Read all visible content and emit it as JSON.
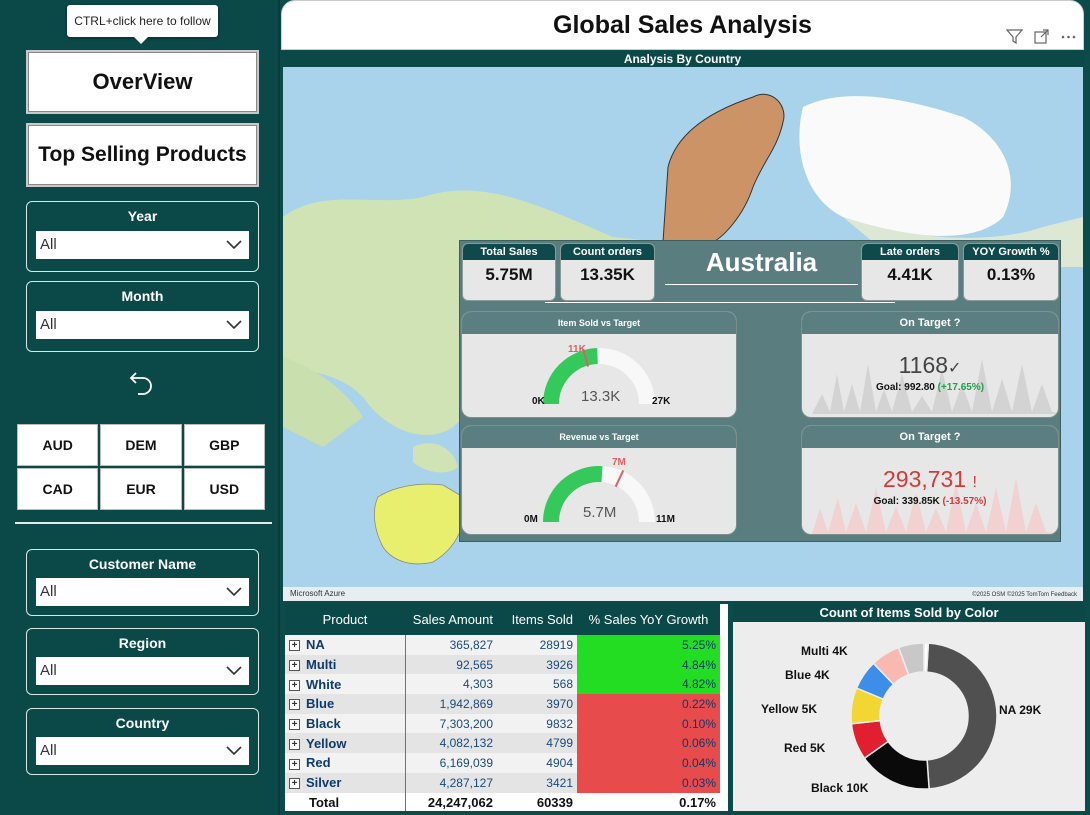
{
  "sidebar": {
    "tooltip": "CTRL+click here to follow",
    "overview_label": "OverView",
    "top_products_label": "Top Selling Products",
    "slicers": [
      {
        "label": "Year",
        "value": "All"
      },
      {
        "label": "Month",
        "value": "All"
      },
      {
        "label": "Customer Name",
        "value": "All"
      },
      {
        "label": "Region",
        "value": "All"
      },
      {
        "label": "Country",
        "value": "All"
      }
    ],
    "currencies": [
      "AUD",
      "DEM",
      "GBP",
      "CAD",
      "EUR",
      "USD"
    ]
  },
  "header": {
    "title": "Global Sales Analysis",
    "map_title": "Analysis By Country",
    "map_credit": "Microsoft Azure",
    "map_credit2": "©2025 OSM ©2025 TomTom Feedback"
  },
  "card": {
    "country": "Australia",
    "kpis": [
      {
        "label": "Total Sales",
        "value": "5.75M"
      },
      {
        "label": "Count orders",
        "value": "13.35K"
      },
      {
        "label": "Late orders",
        "value": "4.41K"
      },
      {
        "label": "YOY Growth %",
        "value": "0.13%"
      }
    ],
    "gauge_items": {
      "title": "Item Sold vs Target",
      "value": "13.3K",
      "min": "0K",
      "max": "27K",
      "target": "11K",
      "fill": 0.49,
      "target_frac": 0.41
    },
    "gauge_revenue": {
      "title": "Revenue vs Target",
      "value": "5.7M",
      "min": "0M",
      "max": "11M",
      "target": "7M",
      "fill": 0.52,
      "target_frac": 0.64
    },
    "on_target_1": {
      "title": "On Target ?",
      "value": "1168",
      "mark": "✓",
      "goal": "Goal: 992.80",
      "delta": "(+17.65%)"
    },
    "on_target_2": {
      "title": "On Target ?",
      "value": "293,731",
      "mark": "!",
      "goal": "Goal: 339.85K",
      "delta": "(-13.57%)"
    }
  },
  "table": {
    "headers": [
      "Product",
      "Sales Amount",
      "Items Sold",
      "% Sales YoY Growth"
    ],
    "rows": [
      {
        "product": "NA",
        "sales": "365,827",
        "items": "28919",
        "growth": "5.25%",
        "status": "g"
      },
      {
        "product": "Multi",
        "sales": "92,565",
        "items": "3926",
        "growth": "4.84%",
        "status": "g"
      },
      {
        "product": "White",
        "sales": "4,303",
        "items": "568",
        "growth": "4.82%",
        "status": "g"
      },
      {
        "product": "Blue",
        "sales": "1,942,869",
        "items": "3970",
        "growth": "0.22%",
        "status": "r"
      },
      {
        "product": "Black",
        "sales": "7,303,200",
        "items": "9832",
        "growth": "0.10%",
        "status": "r"
      },
      {
        "product": "Yellow",
        "sales": "4,082,132",
        "items": "4799",
        "growth": "0.06%",
        "status": "r"
      },
      {
        "product": "Red",
        "sales": "6,169,039",
        "items": "4904",
        "growth": "0.04%",
        "status": "r"
      },
      {
        "product": "Silver",
        "sales": "4,287,127",
        "items": "3421",
        "growth": "0.03%",
        "status": "r"
      }
    ],
    "total": {
      "label": "Total",
      "sales": "24,247,062",
      "items": "60339",
      "growth": "0.17%"
    }
  },
  "chart_data": {
    "type": "pie",
    "title": "Count of Items Sold by Color",
    "categories": [
      "NA",
      "Black",
      "Red",
      "Yellow",
      "Blue",
      "Multi",
      "Silver",
      "White"
    ],
    "values": [
      28919,
      9832,
      4904,
      4799,
      3970,
      3926,
      3421,
      568
    ],
    "labels": [
      "NA 29K",
      "Black 10K",
      "Red 5K",
      "Yellow 5K",
      "Blue 4K",
      "Multi 4K"
    ],
    "colors": [
      "#505050",
      "#0a0a0a",
      "#e02030",
      "#f2d632",
      "#3c8ee8",
      "#f8b9b0",
      "#c8c8c8",
      "#ffffff"
    ]
  }
}
